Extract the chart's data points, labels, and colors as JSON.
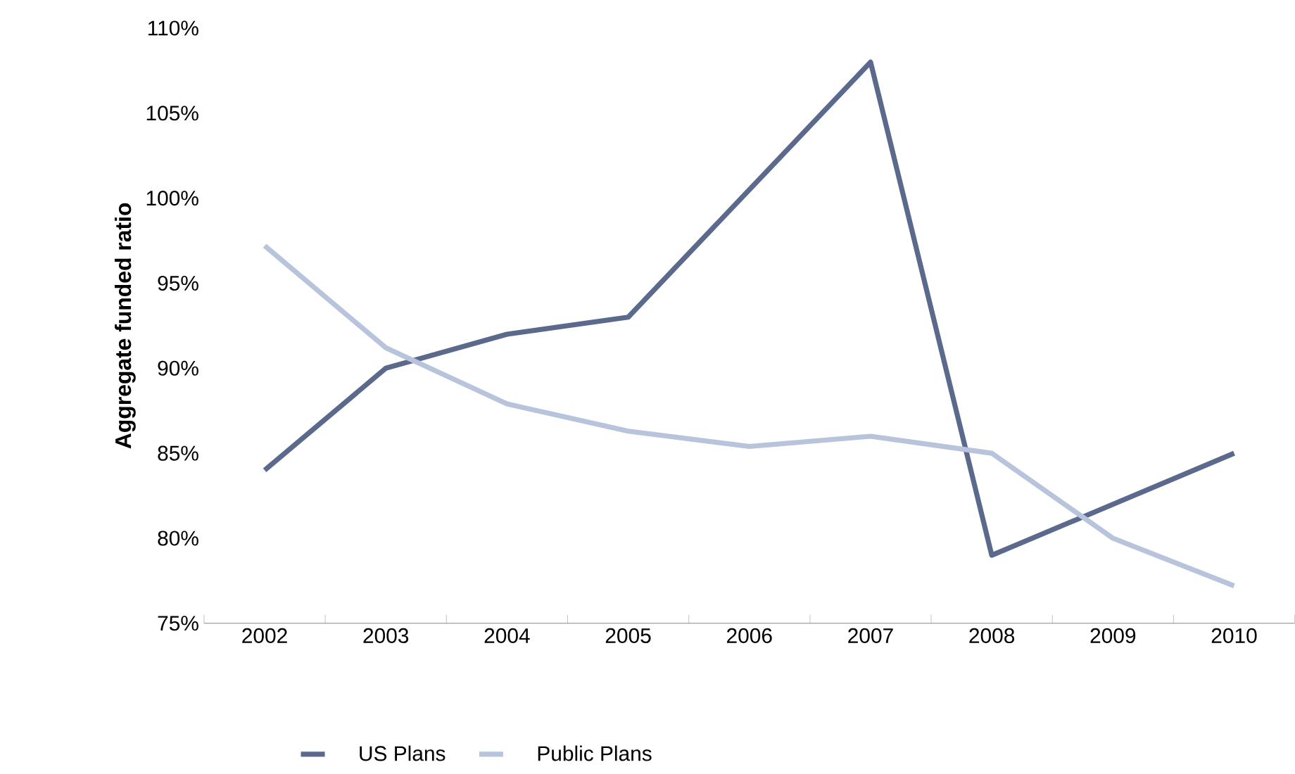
{
  "chart_data": {
    "type": "line",
    "ylabel": "Aggregate funded ratio",
    "categories": [
      "2002",
      "2003",
      "2004",
      "2005",
      "2006",
      "2007",
      "2008",
      "2009",
      "2010"
    ],
    "series": [
      {
        "name": "US Plans",
        "color": "#5b6a8c",
        "values": [
          84,
          90,
          92,
          93,
          100.5,
          108,
          79,
          82,
          85
        ]
      },
      {
        "name": "Public Plans",
        "color": "#b7c4dc",
        "values": [
          97.2,
          91.2,
          87.9,
          86.3,
          85.4,
          86,
          85,
          80,
          77.2
        ]
      }
    ],
    "ylim": [
      75,
      110
    ],
    "yticks": [
      {
        "value": 75,
        "label": "75%"
      },
      {
        "value": 80,
        "label": "80%"
      },
      {
        "value": 85,
        "label": "85%"
      },
      {
        "value": 90,
        "label": "90%"
      },
      {
        "value": 95,
        "label": "95%"
      },
      {
        "value": 100,
        "label": "100%"
      },
      {
        "value": 105,
        "label": "105%"
      },
      {
        "value": 110,
        "label": "110%"
      }
    ],
    "grid": false,
    "legend": "bottom",
    "marker": "none",
    "line_style": "solid"
  }
}
